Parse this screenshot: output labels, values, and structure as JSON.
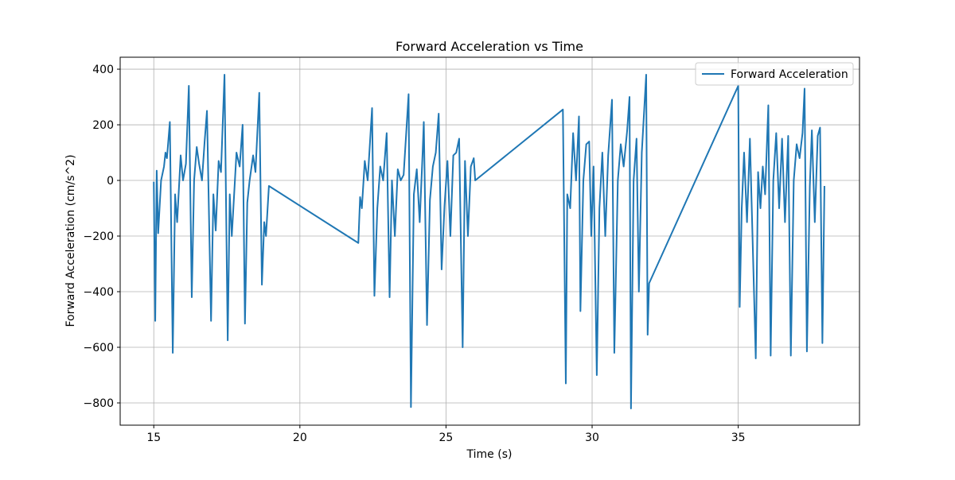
{
  "chart_data": {
    "type": "line",
    "title": "Forward Acceleration vs Time",
    "x_label": "Time (s)",
    "y_label": "Forward Acceleration (cm/s^2)",
    "x": [
      15.0,
      15.05,
      15.1,
      15.15,
      15.25,
      15.35,
      15.4,
      15.45,
      15.55,
      15.65,
      15.73,
      15.8,
      15.92,
      16.0,
      16.1,
      16.2,
      16.3,
      16.38,
      16.47,
      16.55,
      16.65,
      16.74,
      16.82,
      16.96,
      17.04,
      17.12,
      17.22,
      17.3,
      17.42,
      17.53,
      17.6,
      17.67,
      17.83,
      17.94,
      18.04,
      18.12,
      18.2,
      18.28,
      18.4,
      18.48,
      18.61,
      18.7,
      18.78,
      18.84,
      18.94,
      22.0,
      22.06,
      22.12,
      22.22,
      22.32,
      22.47,
      22.55,
      22.65,
      22.75,
      22.85,
      22.97,
      23.07,
      23.15,
      23.25,
      23.35,
      23.45,
      23.55,
      23.72,
      23.8,
      23.9,
      24.0,
      24.1,
      24.2,
      24.24,
      24.35,
      24.45,
      24.55,
      24.65,
      24.75,
      24.85,
      24.95,
      25.05,
      25.15,
      25.25,
      25.35,
      25.45,
      25.57,
      25.65,
      25.75,
      25.85,
      25.95,
      26.0,
      29.0,
      29.1,
      29.15,
      29.25,
      29.35,
      29.45,
      29.55,
      29.6,
      29.7,
      29.8,
      29.9,
      29.97,
      30.05,
      30.16,
      30.25,
      30.35,
      30.45,
      30.55,
      30.68,
      30.76,
      30.88,
      30.98,
      31.08,
      31.2,
      31.28,
      31.33,
      31.42,
      31.52,
      31.6,
      31.7,
      31.85,
      31.9,
      31.95,
      35.0,
      35.05,
      35.12,
      35.2,
      35.3,
      35.4,
      35.6,
      35.68,
      35.76,
      35.84,
      35.92,
      36.03,
      36.11,
      36.2,
      36.3,
      36.4,
      36.5,
      36.6,
      36.71,
      36.8,
      36.9,
      37.0,
      37.1,
      37.2,
      37.27,
      37.35,
      37.45,
      37.52,
      37.62,
      37.72,
      37.8,
      37.88,
      37.95
    ],
    "series": [
      {
        "name": "Forward Acceleration",
        "color": "#1f77b4",
        "values": [
          -5,
          -505,
          35,
          -190,
          0,
          50,
          100,
          80,
          210,
          -620,
          -50,
          -150,
          90,
          0,
          60,
          340,
          -420,
          0,
          120,
          60,
          0,
          140,
          250,
          -505,
          -50,
          -180,
          70,
          30,
          380,
          -575,
          -50,
          -200,
          100,
          50,
          200,
          -515,
          -80,
          0,
          90,
          30,
          315,
          -375,
          -150,
          -200,
          -20,
          -225,
          -60,
          -100,
          70,
          0,
          260,
          -415,
          -100,
          50,
          0,
          170,
          -420,
          0,
          -200,
          40,
          0,
          20,
          310,
          -815,
          -50,
          40,
          -150,
          100,
          210,
          -520,
          -70,
          50,
          100,
          240,
          -320,
          -90,
          70,
          -200,
          90,
          100,
          150,
          -600,
          70,
          -200,
          50,
          80,
          0,
          255,
          -730,
          -50,
          -100,
          170,
          0,
          230,
          -470,
          0,
          130,
          140,
          -200,
          50,
          -700,
          -100,
          100,
          -200,
          90,
          290,
          -620,
          0,
          130,
          50,
          180,
          300,
          -820,
          0,
          150,
          -400,
          100,
          380,
          -555,
          -370,
          340,
          -455,
          -100,
          100,
          -150,
          150,
          -640,
          30,
          -100,
          50,
          -50,
          270,
          -630,
          0,
          170,
          -100,
          150,
          -150,
          160,
          -630,
          0,
          130,
          80,
          170,
          330,
          -615,
          -20,
          180,
          -150,
          160,
          190,
          -585,
          -20
        ]
      }
    ],
    "xlim": [
      13.85,
      39.15
    ],
    "xticks": [
      15,
      20,
      25,
      30,
      35
    ],
    "ylim": [
      -880,
      443
    ],
    "yticks": [
      {
        "value": -800,
        "label": "−800"
      },
      {
        "value": -600,
        "label": "−600"
      },
      {
        "value": -400,
        "label": "−400"
      },
      {
        "value": -200,
        "label": "−200"
      },
      0,
      200,
      400
    ],
    "grid": true,
    "legend": "upper right"
  }
}
